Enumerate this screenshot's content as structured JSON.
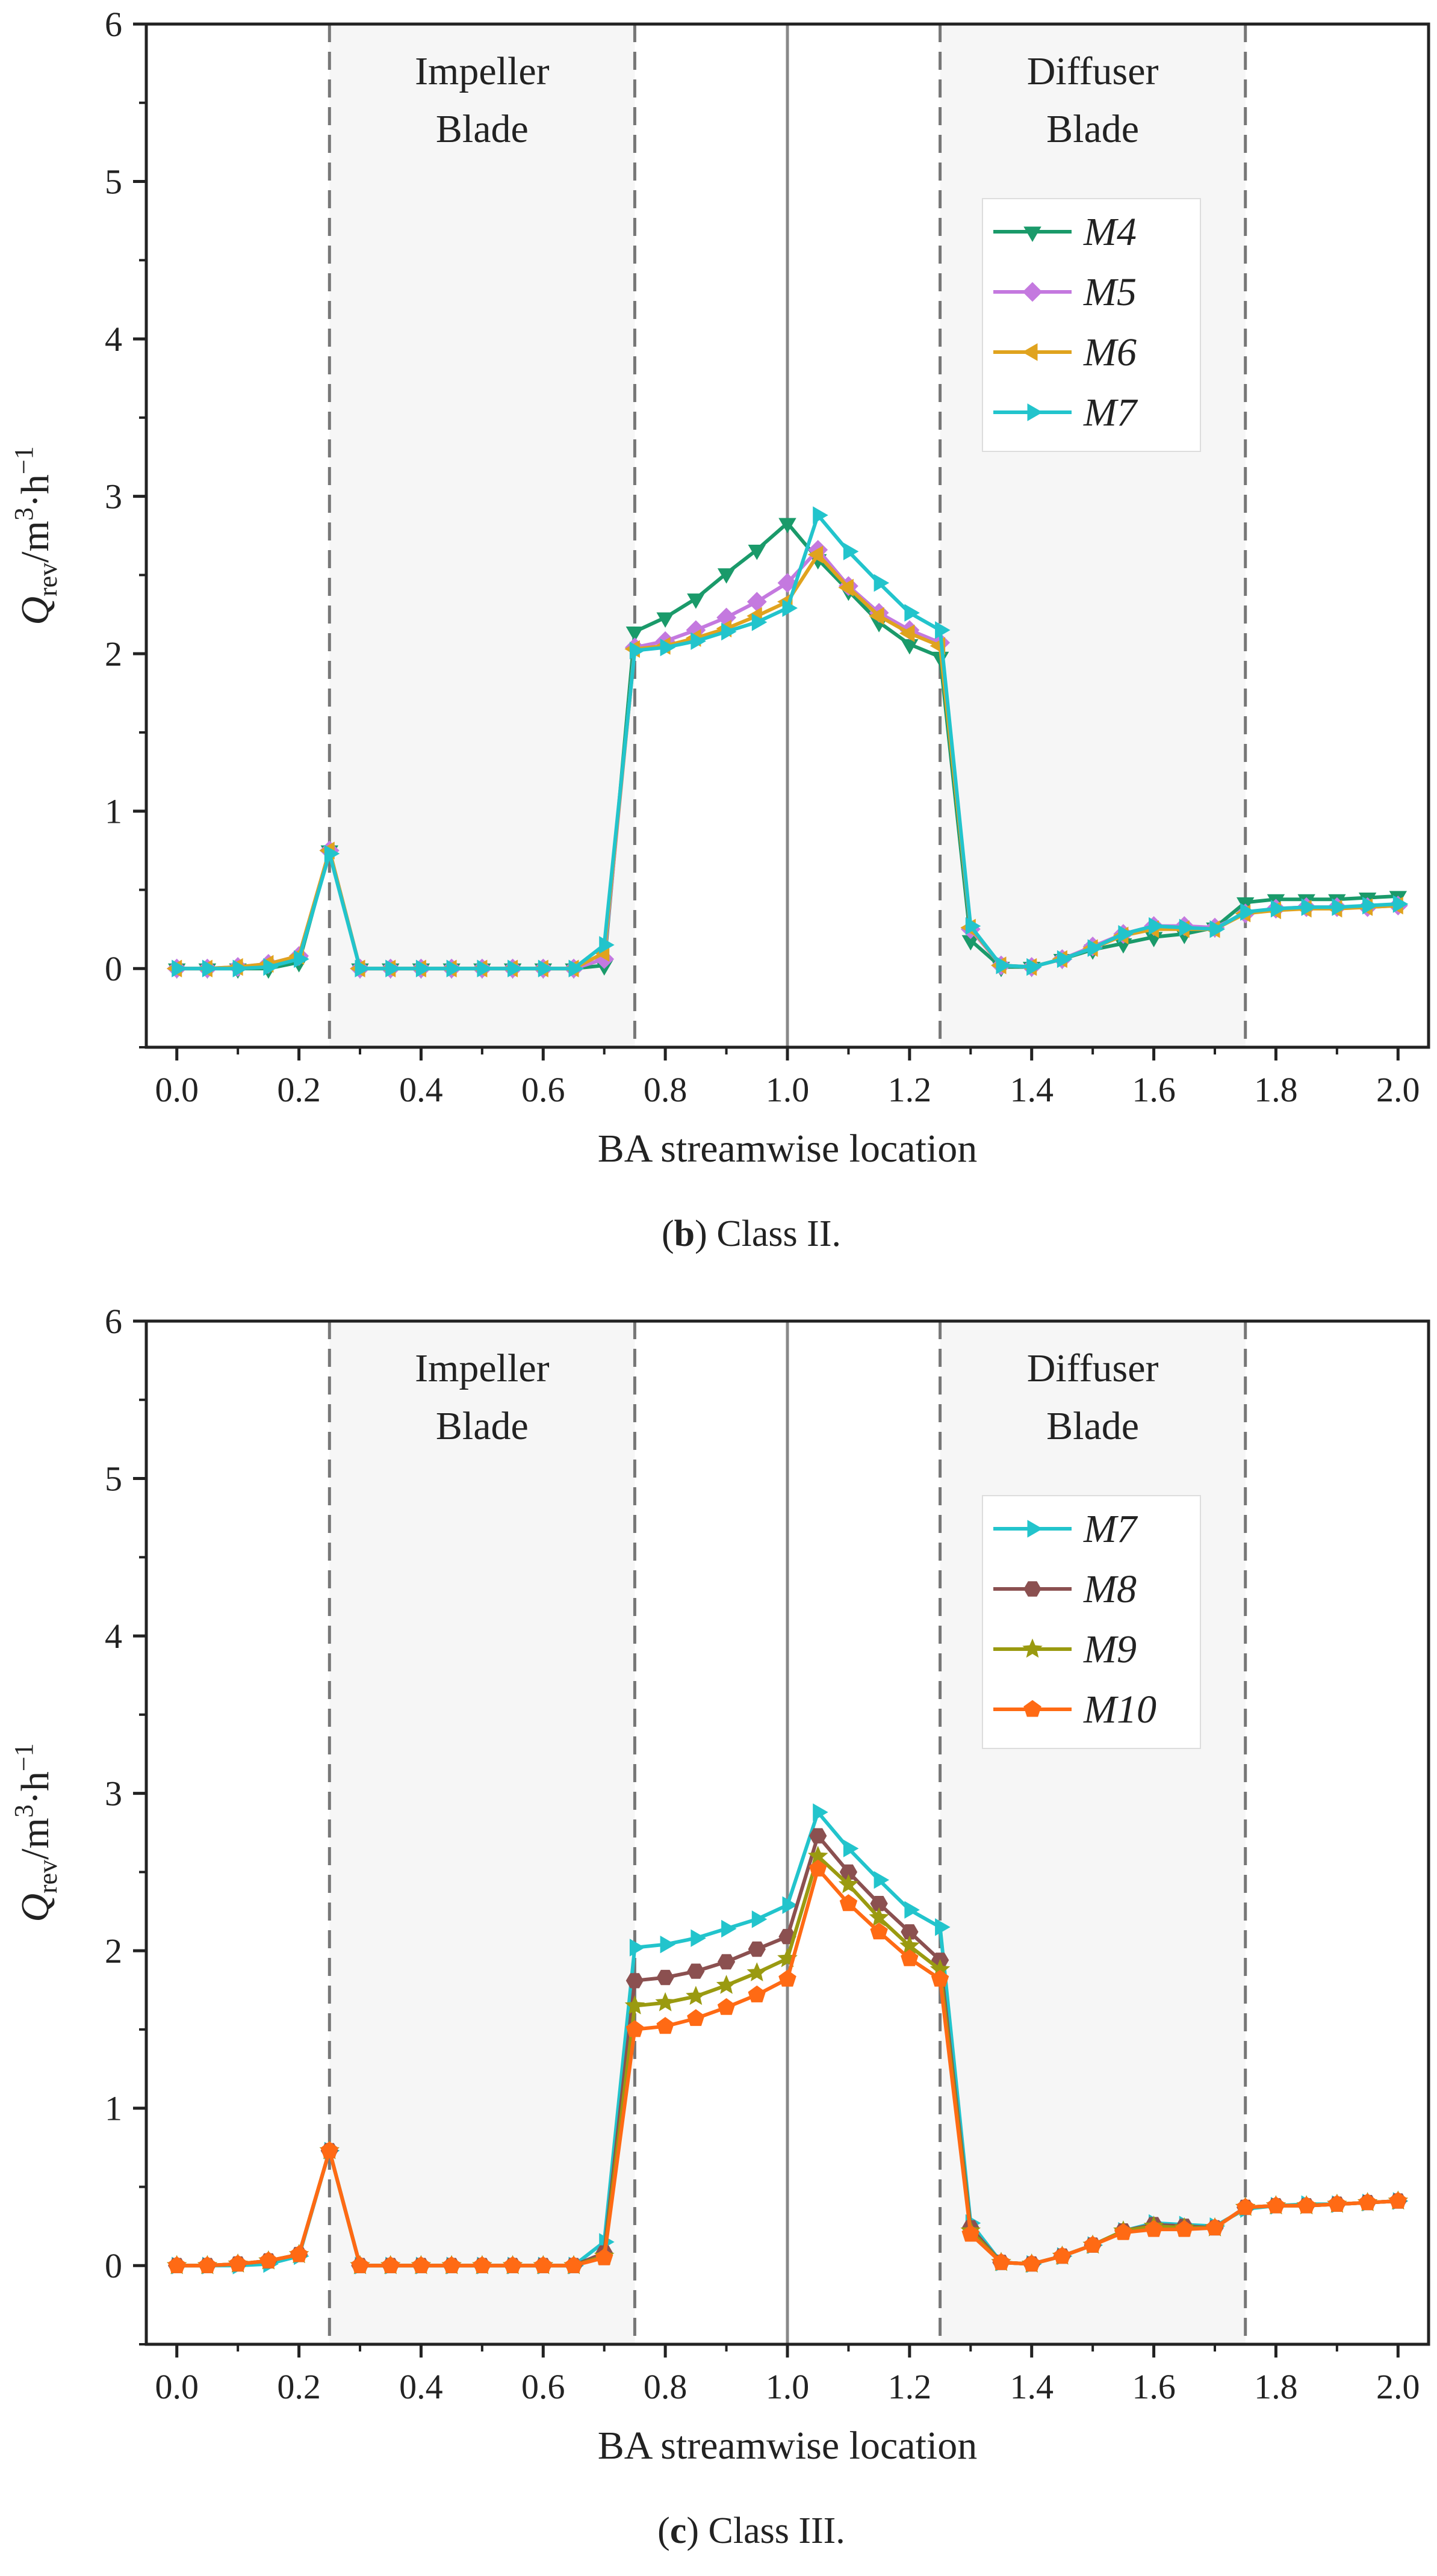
{
  "chart_data": [
    {
      "type": "line",
      "caption_label": "b",
      "caption_text": "Class II.",
      "xlabel": "BA streamwise location",
      "ylabel_main": "Q",
      "ylabel_sub": "rev",
      "ylabel_unit": "/m",
      "ylabel_sup1": "3",
      "ylabel_unit2": "·h",
      "ylabel_sup2": "−1",
      "xlim": [
        -0.05,
        2.05
      ],
      "ylim": [
        -0.5,
        6
      ],
      "xticks": [
        "0.0",
        "0.2",
        "0.4",
        "0.6",
        "0.8",
        "1.0",
        "1.2",
        "1.4",
        "1.6",
        "1.8",
        "2.0"
      ],
      "yticks": [
        "0",
        "1",
        "2",
        "3",
        "4",
        "5",
        "6"
      ],
      "regions": [
        {
          "label_line1": "Impeller",
          "label_line2": "Blade",
          "x_start": 0.25,
          "x_end": 0.75
        },
        {
          "label_line1": "Diffuser",
          "label_line2": "Blade",
          "x_start": 1.25,
          "x_end": 1.75
        }
      ],
      "center_line_x": 1.0,
      "x": [
        0.0,
        0.05,
        0.1,
        0.15,
        0.2,
        0.25,
        0.3,
        0.35,
        0.4,
        0.45,
        0.5,
        0.55,
        0.6,
        0.65,
        0.7,
        0.75,
        0.8,
        0.85,
        0.9,
        0.95,
        1.0,
        1.05,
        1.1,
        1.15,
        1.2,
        1.25,
        1.3,
        1.35,
        1.4,
        1.45,
        1.5,
        1.55,
        1.6,
        1.65,
        1.7,
        1.75,
        1.8,
        1.85,
        1.9,
        1.95,
        2.0
      ],
      "series": [
        {
          "name": "M4",
          "color": "#1a9a6a",
          "marker": "triangle-down",
          "values": [
            0,
            0,
            0,
            0,
            0.04,
            0.75,
            0,
            0,
            0,
            0,
            0,
            0,
            0,
            0,
            0.02,
            2.14,
            2.23,
            2.35,
            2.51,
            2.66,
            2.83,
            2.6,
            2.4,
            2.2,
            2.06,
            1.98,
            0.18,
            0.01,
            0.01,
            0.06,
            0.12,
            0.16,
            0.2,
            0.22,
            0.26,
            0.42,
            0.44,
            0.44,
            0.44,
            0.45,
            0.46
          ]
        },
        {
          "name": "M5",
          "color": "#c479df",
          "marker": "diamond",
          "values": [
            0,
            0,
            0.01,
            0.03,
            0.08,
            0.75,
            0,
            0,
            0,
            0,
            0,
            0,
            0,
            0,
            0.06,
            2.04,
            2.08,
            2.15,
            2.23,
            2.33,
            2.45,
            2.66,
            2.43,
            2.26,
            2.15,
            2.07,
            0.25,
            0.02,
            0.01,
            0.06,
            0.14,
            0.22,
            0.27,
            0.27,
            0.26,
            0.35,
            0.38,
            0.39,
            0.39,
            0.39,
            0.4
          ]
        },
        {
          "name": "M6",
          "color": "#e0a31e",
          "marker": "triangle-left",
          "values": [
            0,
            0,
            0.01,
            0.03,
            0.08,
            0.75,
            0,
            0,
            0,
            0,
            0,
            0,
            0,
            0,
            0.1,
            2.03,
            2.05,
            2.1,
            2.16,
            2.24,
            2.33,
            2.63,
            2.42,
            2.24,
            2.13,
            2.05,
            0.26,
            0.02,
            0.01,
            0.06,
            0.13,
            0.21,
            0.25,
            0.25,
            0.25,
            0.35,
            0.37,
            0.38,
            0.38,
            0.39,
            0.4
          ]
        },
        {
          "name": "M7",
          "color": "#22c4cc",
          "marker": "triangle-right",
          "values": [
            0,
            0,
            0,
            0.01,
            0.06,
            0.73,
            0,
            0,
            0,
            0,
            0,
            0,
            0,
            0,
            0.15,
            2.02,
            2.04,
            2.08,
            2.14,
            2.2,
            2.29,
            2.88,
            2.65,
            2.45,
            2.26,
            2.15,
            0.27,
            0.02,
            0.01,
            0.06,
            0.13,
            0.22,
            0.27,
            0.26,
            0.25,
            0.36,
            0.38,
            0.39,
            0.39,
            0.4,
            0.41
          ]
        }
      ]
    },
    {
      "type": "line",
      "caption_label": "c",
      "caption_text": "Class III.",
      "xlabel": "BA streamwise location",
      "ylabel_main": "Q",
      "ylabel_sub": "rev",
      "ylabel_unit": "/m",
      "ylabel_sup1": "3",
      "ylabel_unit2": "·h",
      "ylabel_sup2": "−1",
      "xlim": [
        -0.05,
        2.05
      ],
      "ylim": [
        -0.5,
        6
      ],
      "xticks": [
        "0.0",
        "0.2",
        "0.4",
        "0.6",
        "0.8",
        "1.0",
        "1.2",
        "1.4",
        "1.6",
        "1.8",
        "2.0"
      ],
      "yticks": [
        "0",
        "1",
        "2",
        "3",
        "4",
        "5",
        "6"
      ],
      "regions": [
        {
          "label_line1": "Impeller",
          "label_line2": "Blade",
          "x_start": 0.25,
          "x_end": 0.75
        },
        {
          "label_line1": "Diffuser",
          "label_line2": "Blade",
          "x_start": 1.25,
          "x_end": 1.75
        }
      ],
      "center_line_x": 1.0,
      "x": [
        0.0,
        0.05,
        0.1,
        0.15,
        0.2,
        0.25,
        0.3,
        0.35,
        0.4,
        0.45,
        0.5,
        0.55,
        0.6,
        0.65,
        0.7,
        0.75,
        0.8,
        0.85,
        0.9,
        0.95,
        1.0,
        1.05,
        1.1,
        1.15,
        1.2,
        1.25,
        1.3,
        1.35,
        1.4,
        1.45,
        1.5,
        1.55,
        1.6,
        1.65,
        1.7,
        1.75,
        1.8,
        1.85,
        1.9,
        1.95,
        2.0
      ],
      "series": [
        {
          "name": "M7",
          "color": "#22c4cc",
          "marker": "triangle-right",
          "values": [
            0,
            0,
            0,
            0.01,
            0.06,
            0.73,
            0,
            0,
            0,
            0,
            0,
            0,
            0,
            0,
            0.15,
            2.02,
            2.04,
            2.08,
            2.14,
            2.2,
            2.29,
            2.88,
            2.65,
            2.45,
            2.26,
            2.15,
            0.27,
            0.02,
            0.01,
            0.06,
            0.13,
            0.22,
            0.27,
            0.26,
            0.25,
            0.36,
            0.38,
            0.39,
            0.39,
            0.4,
            0.41
          ]
        },
        {
          "name": "M8",
          "color": "#8b5050",
          "marker": "hexagon",
          "values": [
            0,
            0,
            0.01,
            0.03,
            0.07,
            0.73,
            0,
            0,
            0,
            0,
            0,
            0,
            0,
            0,
            0.08,
            1.81,
            1.83,
            1.87,
            1.93,
            2.01,
            2.09,
            2.73,
            2.5,
            2.3,
            2.12,
            1.94,
            0.24,
            0.02,
            0.01,
            0.06,
            0.13,
            0.22,
            0.26,
            0.25,
            0.24,
            0.37,
            0.38,
            0.38,
            0.39,
            0.4,
            0.41
          ]
        },
        {
          "name": "M9",
          "color": "#9a9a10",
          "marker": "star",
          "values": [
            0,
            0,
            0.01,
            0.03,
            0.07,
            0.73,
            0,
            0,
            0,
            0,
            0,
            0,
            0,
            0,
            0.06,
            1.65,
            1.67,
            1.71,
            1.78,
            1.86,
            1.95,
            2.6,
            2.42,
            2.21,
            2.03,
            1.88,
            0.22,
            0.02,
            0.01,
            0.06,
            0.13,
            0.22,
            0.25,
            0.24,
            0.24,
            0.37,
            0.38,
            0.38,
            0.39,
            0.4,
            0.41
          ]
        },
        {
          "name": "M10",
          "color": "#ff6a14",
          "marker": "pentagon",
          "values": [
            0,
            0,
            0.01,
            0.03,
            0.07,
            0.73,
            0,
            0,
            0,
            0,
            0,
            0,
            0,
            0,
            0.05,
            1.5,
            1.52,
            1.57,
            1.64,
            1.72,
            1.82,
            2.52,
            2.3,
            2.12,
            1.95,
            1.82,
            0.2,
            0.02,
            0.01,
            0.06,
            0.13,
            0.21,
            0.23,
            0.23,
            0.24,
            0.37,
            0.38,
            0.38,
            0.39,
            0.4,
            0.41
          ]
        }
      ]
    }
  ]
}
